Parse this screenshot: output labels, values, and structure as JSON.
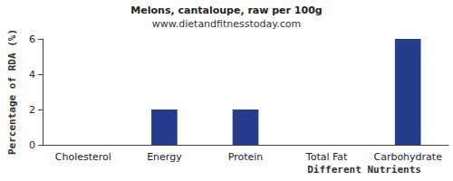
{
  "chart_data": {
    "type": "bar",
    "title": "Melons, cantaloupe, raw per 100g",
    "subtitle": "www.dietandfitnesstoday.com",
    "x_label": "Different Nutrients",
    "y_label": "Percentage of RDA (%)",
    "categories": [
      "Cholesterol",
      "Energy",
      "Protein",
      "Total Fat",
      "Carbohydrate"
    ],
    "values": [
      0,
      2,
      2,
      0,
      6
    ],
    "color": "#253d8c",
    "ylim": [
      0,
      6
    ],
    "yticks": [
      0,
      2,
      4,
      6
    ],
    "grid": false
  }
}
